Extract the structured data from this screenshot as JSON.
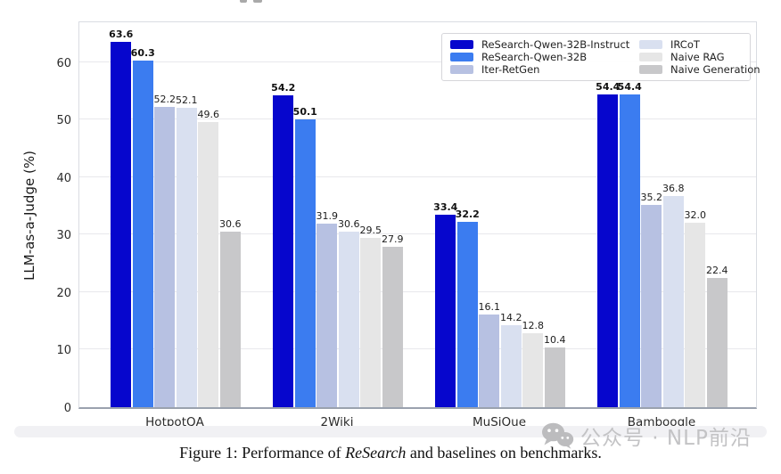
{
  "chart_data": {
    "type": "bar",
    "title": "",
    "xlabel": "",
    "ylabel": "LLM-as-a-Judge (%)",
    "ylim": [
      0,
      67.4
    ],
    "yticks": [
      0,
      10,
      20,
      30,
      40,
      50,
      60
    ],
    "grid": true,
    "legend_position": "upper right",
    "legend_columns": 2,
    "bar_value_labels": true,
    "categories": [
      "HotpotQA",
      "2Wiki",
      "MuSiQue",
      "Bamboogle"
    ],
    "series": [
      {
        "name": "ReSearch-Qwen-32B-Instruct",
        "color": "#0606cd",
        "label_bold": true,
        "values": [
          63.6,
          54.2,
          33.4,
          54.4
        ]
      },
      {
        "name": "ReSearch-Qwen-32B",
        "color": "#3b7cf0",
        "label_bold": true,
        "values": [
          60.3,
          50.1,
          32.2,
          54.4
        ]
      },
      {
        "name": "Iter-RetGen",
        "color": "#b7c1e2",
        "label_bold": false,
        "values": [
          52.2,
          31.9,
          16.1,
          35.2
        ]
      },
      {
        "name": "IRCoT",
        "color": "#d9e0f0",
        "label_bold": false,
        "values": [
          52.1,
          30.6,
          14.2,
          36.8
        ]
      },
      {
        "name": "Naive RAG",
        "color": "#e6e6e6",
        "label_bold": false,
        "values": [
          49.6,
          29.5,
          12.8,
          32.0
        ]
      },
      {
        "name": "Naive Generation",
        "color": "#c8c8ca",
        "label_bold": false,
        "values": [
          30.6,
          27.9,
          10.4,
          22.4
        ]
      }
    ]
  },
  "caption": {
    "prefix": "Figure 1: Performance of ",
    "italic": "ReSearch",
    "suffix": " and baselines on benchmarks."
  },
  "watermark": {
    "icon": "wechat-icon",
    "text": "公众号 · NLP前沿",
    "color": "#c3c3c5"
  }
}
